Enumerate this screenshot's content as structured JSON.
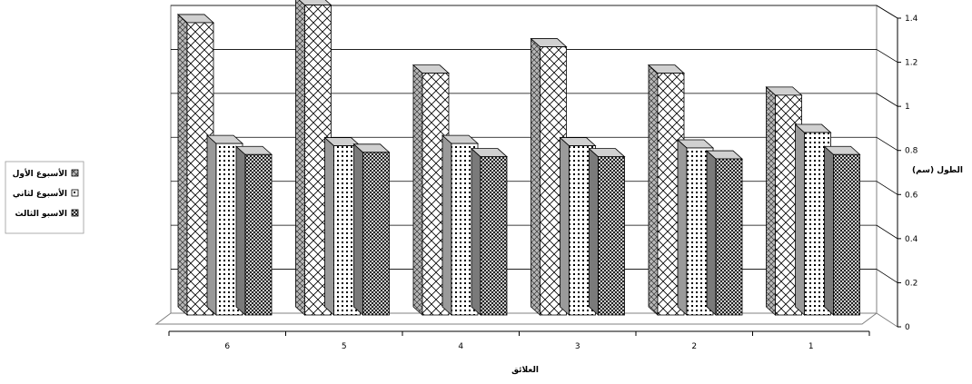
{
  "chart_data": {
    "type": "bar",
    "title": "",
    "xlabel": "العلائق",
    "ylabel": "الطول (سم)",
    "categories": [
      "6",
      "5",
      "4",
      "3",
      "2",
      "1"
    ],
    "series": [
      {
        "name": "الأسبوع الأول",
        "values": [
          1.33,
          1.41,
          1.1,
          1.22,
          1.1,
          1.0
        ]
      },
      {
        "name": "الأسبوع لثاني",
        "values": [
          0.78,
          0.77,
          0.78,
          0.77,
          0.76,
          0.83
        ]
      },
      {
        "name": "الاسبو الثالث",
        "values": [
          0.73,
          0.74,
          0.72,
          0.72,
          0.71,
          0.73
        ]
      }
    ],
    "ylim": [
      0,
      1.4
    ],
    "yticks": [
      "0",
      "0.2",
      "0.4",
      "0.6",
      "0.8",
      "1",
      "1.2",
      "1.4"
    ],
    "grid": true,
    "legend_position": "left",
    "y_axis_side": "right"
  }
}
